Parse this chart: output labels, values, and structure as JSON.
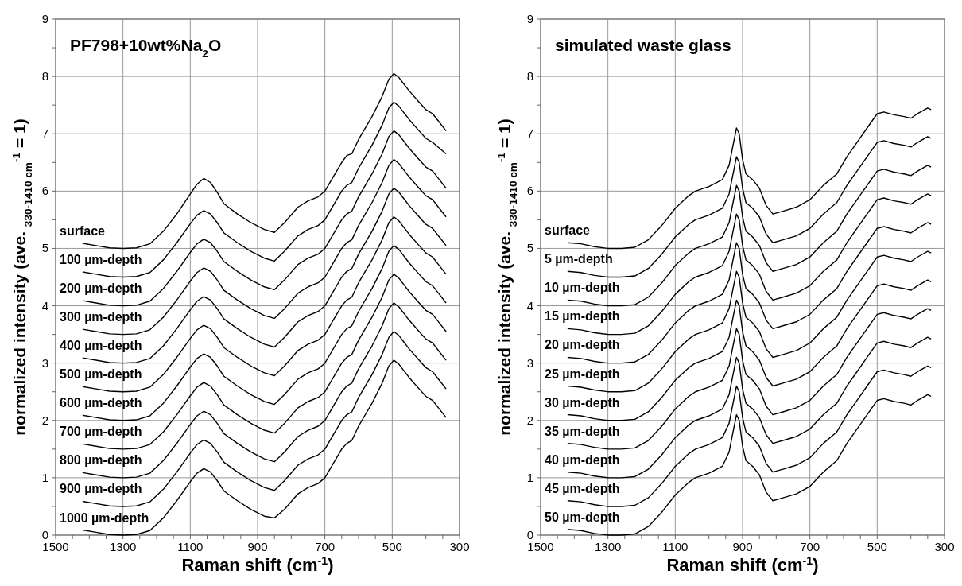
{
  "chart_data": [
    {
      "type": "line",
      "title": "PF798+10wt%Na$_{2}$O",
      "xlabel": "Raman shift (cm$^{-1}$)",
      "ylabel": "normalized intensity (ave. $_{330-1410 cm}$$^{-1}$ = 1)",
      "xlim": [
        1500,
        300
      ],
      "ylim": [
        0,
        9
      ],
      "grid": true,
      "xticks": [
        1500,
        {
          "value": 1450,
          "label": null
        },
        {
          "value": 1400,
          "label": null
        },
        {
          "value": 1350,
          "label": null
        },
        1300,
        {
          "value": 1250,
          "label": null
        },
        {
          "value": 1200,
          "label": null
        },
        {
          "value": 1150,
          "label": null
        },
        1100,
        {
          "value": 1050,
          "label": null
        },
        {
          "value": 1000,
          "label": null
        },
        {
          "value": 950,
          "label": null
        },
        900,
        {
          "value": 850,
          "label": null
        },
        {
          "value": 800,
          "label": null
        },
        {
          "value": 750,
          "label": null
        },
        700,
        {
          "value": 650,
          "label": null
        },
        {
          "value": 600,
          "label": null
        },
        {
          "value": 550,
          "label": null
        },
        500,
        {
          "value": 450,
          "label": null
        },
        {
          "value": 400,
          "label": null
        },
        {
          "value": 350,
          "label": null
        },
        300
      ],
      "yticks": [
        0,
        {
          "value": 0.5,
          "label": null
        },
        1,
        {
          "value": 1.5,
          "label": null
        },
        2,
        {
          "value": 2.5,
          "label": null
        },
        3,
        {
          "value": 3.5,
          "label": null
        },
        4,
        {
          "value": 4.5,
          "label": null
        },
        5,
        {
          "value": 5.5,
          "label": null
        },
        6,
        {
          "value": 6.5,
          "label": null
        },
        7,
        {
          "value": 7.5,
          "label": null
        },
        8,
        {
          "value": 8.5,
          "label": null
        },
        9
      ],
      "x": [
        1420,
        1380,
        1340,
        1300,
        1260,
        1220,
        1180,
        1140,
        1100,
        1080,
        1060,
        1040,
        1020,
        1000,
        960,
        920,
        880,
        850,
        820,
        780,
        750,
        720,
        700,
        680,
        650,
        635,
        620,
        600,
        560,
        530,
        510,
        495,
        480,
        450,
        420,
        400,
        380,
        360,
        340
      ],
      "series": [
        {
          "name": "surface",
          "color": "#000000",
          "values": [
            5.09,
            5.05,
            5.01,
            5,
            5.01,
            5.08,
            5.3,
            5.6,
            5.95,
            6.12,
            6.22,
            6.15,
            5.98,
            5.78,
            5.6,
            5.45,
            5.33,
            5.28,
            5.45,
            5.72,
            5.83,
            5.9,
            6,
            6.2,
            6.5,
            6.62,
            6.65,
            6.9,
            7.3,
            7.65,
            7.95,
            8.05,
            7.98,
            7.75,
            7.55,
            7.42,
            7.35,
            7.2,
            7.05
          ]
        },
        {
          "name": "100 µm-depth",
          "color": "#000000",
          "values": [
            4.59,
            4.55,
            4.51,
            4.5,
            4.51,
            4.58,
            4.8,
            5.1,
            5.43,
            5.58,
            5.66,
            5.6,
            5.45,
            5.27,
            5.1,
            4.95,
            4.83,
            4.78,
            4.95,
            5.22,
            5.33,
            5.4,
            5.5,
            5.7,
            6,
            6.1,
            6.15,
            6.4,
            6.8,
            7.15,
            7.45,
            7.55,
            7.48,
            7.25,
            7.05,
            6.92,
            6.85,
            6.75,
            6.65
          ]
        },
        {
          "name": "200 µm-depth",
          "color": "#000000",
          "values": [
            4.09,
            4.05,
            4.01,
            4,
            4.01,
            4.08,
            4.3,
            4.6,
            4.93,
            5.08,
            5.16,
            5.1,
            4.95,
            4.77,
            4.6,
            4.45,
            4.33,
            4.28,
            4.45,
            4.72,
            4.83,
            4.9,
            5,
            5.2,
            5.5,
            5.6,
            5.65,
            5.9,
            6.3,
            6.65,
            6.95,
            7.05,
            6.98,
            6.75,
            6.55,
            6.42,
            6.35,
            6.2,
            6.05
          ]
        },
        {
          "name": "300 µm-depth",
          "color": "#000000",
          "values": [
            3.59,
            3.55,
            3.51,
            3.5,
            3.51,
            3.58,
            3.8,
            4.1,
            4.43,
            4.58,
            4.66,
            4.6,
            4.45,
            4.27,
            4.1,
            3.95,
            3.83,
            3.78,
            3.95,
            4.22,
            4.33,
            4.4,
            4.5,
            4.7,
            5,
            5.1,
            5.15,
            5.4,
            5.8,
            6.15,
            6.45,
            6.55,
            6.48,
            6.25,
            6.05,
            5.92,
            5.85,
            5.7,
            5.55
          ]
        },
        {
          "name": "400 µm-depth",
          "color": "#000000",
          "values": [
            3.09,
            3.05,
            3.01,
            3,
            3.01,
            3.08,
            3.3,
            3.6,
            3.93,
            4.08,
            4.16,
            4.1,
            3.95,
            3.77,
            3.6,
            3.45,
            3.33,
            3.28,
            3.45,
            3.72,
            3.83,
            3.9,
            4,
            4.2,
            4.5,
            4.6,
            4.65,
            4.9,
            5.3,
            5.65,
            5.95,
            6.05,
            5.98,
            5.75,
            5.55,
            5.42,
            5.35,
            5.2,
            5.05
          ]
        },
        {
          "name": "500 µm-depth",
          "color": "#000000",
          "values": [
            2.59,
            2.55,
            2.51,
            2.5,
            2.51,
            2.58,
            2.8,
            3.1,
            3.43,
            3.58,
            3.66,
            3.6,
            3.45,
            3.27,
            3.1,
            2.95,
            2.83,
            2.78,
            2.95,
            3.22,
            3.33,
            3.4,
            3.5,
            3.7,
            4,
            4.1,
            4.15,
            4.4,
            4.8,
            5.15,
            5.45,
            5.55,
            5.48,
            5.25,
            5.05,
            4.92,
            4.85,
            4.7,
            4.55
          ]
        },
        {
          "name": "600 µm-depth",
          "color": "#000000",
          "values": [
            2.09,
            2.05,
            2.01,
            2,
            2.01,
            2.08,
            2.3,
            2.6,
            2.93,
            3.08,
            3.16,
            3.1,
            2.95,
            2.77,
            2.6,
            2.45,
            2.33,
            2.28,
            2.45,
            2.72,
            2.83,
            2.9,
            3,
            3.2,
            3.5,
            3.6,
            3.65,
            3.9,
            4.3,
            4.65,
            4.95,
            5.05,
            4.98,
            4.75,
            4.55,
            4.42,
            4.35,
            4.2,
            4.05
          ]
        },
        {
          "name": "700 µm-depth",
          "color": "#000000",
          "values": [
            1.59,
            1.55,
            1.51,
            1.5,
            1.51,
            1.58,
            1.8,
            2.1,
            2.43,
            2.58,
            2.66,
            2.6,
            2.45,
            2.27,
            2.1,
            1.95,
            1.83,
            1.78,
            1.95,
            2.22,
            2.33,
            2.4,
            2.5,
            2.7,
            3,
            3.1,
            3.15,
            3.4,
            3.8,
            4.15,
            4.45,
            4.55,
            4.48,
            4.25,
            4.05,
            3.92,
            3.85,
            3.7,
            3.55
          ]
        },
        {
          "name": "800 µm-depth",
          "color": "#000000",
          "values": [
            1.09,
            1.05,
            1.01,
            1,
            1.01,
            1.08,
            1.3,
            1.6,
            1.93,
            2.08,
            2.16,
            2.1,
            1.95,
            1.77,
            1.6,
            1.45,
            1.33,
            1.28,
            1.45,
            1.72,
            1.83,
            1.9,
            2,
            2.2,
            2.5,
            2.6,
            2.65,
            2.9,
            3.3,
            3.65,
            3.95,
            4.05,
            3.98,
            3.75,
            3.55,
            3.42,
            3.35,
            3.2,
            3.05
          ]
        },
        {
          "name": "900 µm-depth",
          "color": "#000000",
          "values": [
            0.59,
            0.55,
            0.51,
            0.5,
            0.51,
            0.58,
            0.8,
            1.1,
            1.43,
            1.58,
            1.66,
            1.6,
            1.45,
            1.27,
            1.1,
            0.95,
            0.83,
            0.78,
            0.95,
            1.22,
            1.33,
            1.4,
            1.5,
            1.7,
            2,
            2.1,
            2.15,
            2.4,
            2.8,
            3.15,
            3.45,
            3.55,
            3.48,
            3.25,
            3.05,
            2.92,
            2.85,
            2.7,
            2.55
          ]
        },
        {
          "name": "1000 µm-depth",
          "color": "#000000",
          "values": [
            0.09,
            0.05,
            0.01,
            0,
            0.01,
            0.08,
            0.3,
            0.6,
            0.93,
            1.08,
            1.16,
            1.1,
            0.95,
            0.77,
            0.6,
            0.45,
            0.33,
            0.3,
            0.45,
            0.72,
            0.83,
            0.9,
            1,
            1.2,
            1.5,
            1.6,
            1.65,
            1.9,
            2.3,
            2.65,
            2.95,
            3.05,
            2.98,
            2.75,
            2.55,
            2.42,
            2.35,
            2.2,
            2.05
          ]
        }
      ]
    },
    {
      "type": "line",
      "title": "simulated waste glass",
      "xlabel": "Raman shift (cm$^{-1}$)",
      "ylabel": "normalized intensity (ave. $_{330-1410 cm}$$^{-1}$ = 1)",
      "xlim": [
        1500,
        300
      ],
      "ylim": [
        0,
        9
      ],
      "grid": true,
      "xticks": [
        1500,
        {
          "value": 1450,
          "label": null
        },
        {
          "value": 1400,
          "label": null
        },
        {
          "value": 1350,
          "label": null
        },
        1300,
        {
          "value": 1250,
          "label": null
        },
        {
          "value": 1200,
          "label": null
        },
        {
          "value": 1150,
          "label": null
        },
        1100,
        {
          "value": 1050,
          "label": null
        },
        {
          "value": 1000,
          "label": null
        },
        {
          "value": 950,
          "label": null
        },
        900,
        {
          "value": 850,
          "label": null
        },
        {
          "value": 800,
          "label": null
        },
        {
          "value": 750,
          "label": null
        },
        700,
        {
          "value": 650,
          "label": null
        },
        {
          "value": 600,
          "label": null
        },
        {
          "value": 550,
          "label": null
        },
        500,
        {
          "value": 450,
          "label": null
        },
        {
          "value": 400,
          "label": null
        },
        {
          "value": 350,
          "label": null
        },
        300
      ],
      "yticks": [
        0,
        {
          "value": 0.5,
          "label": null
        },
        1,
        {
          "value": 1.5,
          "label": null
        },
        2,
        {
          "value": 2.5,
          "label": null
        },
        3,
        {
          "value": 3.5,
          "label": null
        },
        4,
        {
          "value": 4.5,
          "label": null
        },
        5,
        {
          "value": 5.5,
          "label": null
        },
        6,
        {
          "value": 6.5,
          "label": null
        },
        7,
        {
          "value": 7.5,
          "label": null
        },
        8,
        {
          "value": 8.5,
          "label": null
        },
        9
      ],
      "x": [
        1420,
        1380,
        1340,
        1300,
        1260,
        1220,
        1180,
        1140,
        1100,
        1060,
        1040,
        1000,
        960,
        940,
        930,
        918,
        910,
        900,
        890,
        870,
        850,
        830,
        810,
        780,
        740,
        700,
        660,
        620,
        590,
        560,
        530,
        500,
        480,
        450,
        420,
        400,
        380,
        350,
        340
      ],
      "series": [
        {
          "name": "surface",
          "color": "#000000",
          "values": [
            5.1,
            5.08,
            5.03,
            5,
            5,
            5.02,
            5.15,
            5.4,
            5.7,
            5.92,
            6,
            6.08,
            6.2,
            6.45,
            6.75,
            7.1,
            7,
            6.55,
            6.3,
            6.2,
            6.05,
            5.75,
            5.6,
            5.65,
            5.72,
            5.85,
            6.1,
            6.3,
            6.6,
            6.85,
            7.1,
            7.35,
            7.38,
            7.33,
            7.3,
            7.27,
            7.35,
            7.45,
            7.42
          ]
        },
        {
          "name": "5 µm-depth",
          "color": "#000000",
          "values": [
            4.6,
            4.58,
            4.53,
            4.5,
            4.5,
            4.52,
            4.65,
            4.9,
            5.2,
            5.42,
            5.5,
            5.58,
            5.7,
            5.95,
            6.25,
            6.6,
            6.5,
            6.05,
            5.8,
            5.7,
            5.55,
            5.25,
            5.1,
            5.15,
            5.22,
            5.35,
            5.6,
            5.8,
            6.1,
            6.35,
            6.6,
            6.85,
            6.88,
            6.83,
            6.8,
            6.77,
            6.85,
            6.95,
            6.92
          ]
        },
        {
          "name": "10 µm-depth",
          "color": "#000000",
          "values": [
            4.1,
            4.08,
            4.03,
            4,
            4,
            4.02,
            4.15,
            4.4,
            4.7,
            4.92,
            5,
            5.08,
            5.2,
            5.45,
            5.75,
            6.1,
            6,
            5.55,
            5.3,
            5.2,
            5.05,
            4.75,
            4.6,
            4.65,
            4.72,
            4.85,
            5.1,
            5.3,
            5.6,
            5.85,
            6.1,
            6.35,
            6.38,
            6.33,
            6.3,
            6.27,
            6.35,
            6.45,
            6.42
          ]
        },
        {
          "name": "15 µm-depth",
          "color": "#000000",
          "values": [
            3.6,
            3.58,
            3.53,
            3.5,
            3.5,
            3.52,
            3.65,
            3.9,
            4.2,
            4.42,
            4.5,
            4.58,
            4.7,
            4.95,
            5.25,
            5.6,
            5.5,
            5.05,
            4.8,
            4.7,
            4.55,
            4.25,
            4.1,
            4.15,
            4.22,
            4.35,
            4.6,
            4.8,
            5.1,
            5.35,
            5.6,
            5.85,
            5.88,
            5.83,
            5.8,
            5.77,
            5.85,
            5.95,
            5.92
          ]
        },
        {
          "name": "20 µm-depth",
          "color": "#000000",
          "values": [
            3.1,
            3.08,
            3.03,
            3,
            3,
            3.02,
            3.15,
            3.4,
            3.7,
            3.92,
            4,
            4.08,
            4.2,
            4.45,
            4.75,
            5.1,
            5,
            4.55,
            4.3,
            4.2,
            4.05,
            3.75,
            3.6,
            3.65,
            3.72,
            3.85,
            4.1,
            4.3,
            4.6,
            4.85,
            5.1,
            5.35,
            5.38,
            5.33,
            5.3,
            5.27,
            5.35,
            5.45,
            5.42
          ]
        },
        {
          "name": "25 µm-depth",
          "color": "#000000",
          "values": [
            2.6,
            2.58,
            2.53,
            2.5,
            2.5,
            2.52,
            2.65,
            2.9,
            3.2,
            3.42,
            3.5,
            3.58,
            3.7,
            3.95,
            4.25,
            4.6,
            4.5,
            4.05,
            3.8,
            3.7,
            3.55,
            3.25,
            3.1,
            3.15,
            3.22,
            3.35,
            3.6,
            3.8,
            4.1,
            4.35,
            4.6,
            4.85,
            4.88,
            4.83,
            4.8,
            4.77,
            4.85,
            4.95,
            4.92
          ]
        },
        {
          "name": "30 µm-depth",
          "color": "#000000",
          "values": [
            2.1,
            2.08,
            2.03,
            2,
            2,
            2.02,
            2.15,
            2.4,
            2.7,
            2.92,
            3,
            3.08,
            3.2,
            3.45,
            3.75,
            4.1,
            4,
            3.55,
            3.3,
            3.2,
            3.05,
            2.75,
            2.6,
            2.65,
            2.72,
            2.85,
            3.1,
            3.3,
            3.6,
            3.85,
            4.1,
            4.35,
            4.38,
            4.33,
            4.3,
            4.27,
            4.35,
            4.45,
            4.42
          ]
        },
        {
          "name": "35 µm-depth",
          "color": "#000000",
          "values": [
            1.6,
            1.58,
            1.53,
            1.5,
            1.5,
            1.52,
            1.65,
            1.9,
            2.2,
            2.42,
            2.5,
            2.58,
            2.7,
            2.95,
            3.25,
            3.6,
            3.5,
            3.05,
            2.8,
            2.7,
            2.55,
            2.25,
            2.1,
            2.15,
            2.22,
            2.35,
            2.6,
            2.8,
            3.1,
            3.35,
            3.6,
            3.85,
            3.88,
            3.83,
            3.8,
            3.77,
            3.85,
            3.95,
            3.92
          ]
        },
        {
          "name": "40 µm-depth",
          "color": "#000000",
          "values": [
            1.1,
            1.08,
            1.03,
            1,
            1,
            1.02,
            1.15,
            1.4,
            1.7,
            1.92,
            2,
            2.08,
            2.2,
            2.45,
            2.75,
            3.1,
            3,
            2.55,
            2.3,
            2.2,
            2.05,
            1.75,
            1.6,
            1.65,
            1.72,
            1.85,
            2.1,
            2.3,
            2.6,
            2.85,
            3.1,
            3.35,
            3.38,
            3.33,
            3.3,
            3.27,
            3.35,
            3.45,
            3.42
          ]
        },
        {
          "name": "45 µm-depth",
          "color": "#000000",
          "values": [
            0.6,
            0.58,
            0.53,
            0.5,
            0.5,
            0.52,
            0.65,
            0.9,
            1.2,
            1.42,
            1.5,
            1.58,
            1.7,
            1.95,
            2.25,
            2.6,
            2.5,
            2.05,
            1.8,
            1.7,
            1.55,
            1.25,
            1.1,
            1.15,
            1.22,
            1.35,
            1.6,
            1.8,
            2.1,
            2.35,
            2.6,
            2.85,
            2.88,
            2.83,
            2.8,
            2.77,
            2.85,
            2.95,
            2.92
          ]
        },
        {
          "name": "50 µm-depth",
          "color": "#000000",
          "values": [
            0.1,
            0.08,
            0.03,
            0,
            0,
            0.02,
            0.15,
            0.4,
            0.7,
            0.92,
            1,
            1.08,
            1.2,
            1.45,
            1.75,
            2.1,
            2,
            1.55,
            1.3,
            1.2,
            1.05,
            0.75,
            0.6,
            0.65,
            0.72,
            0.85,
            1.1,
            1.3,
            1.6,
            1.85,
            2.1,
            2.35,
            2.38,
            2.33,
            2.3,
            2.27,
            2.35,
            2.45,
            2.42
          ]
        }
      ]
    }
  ]
}
